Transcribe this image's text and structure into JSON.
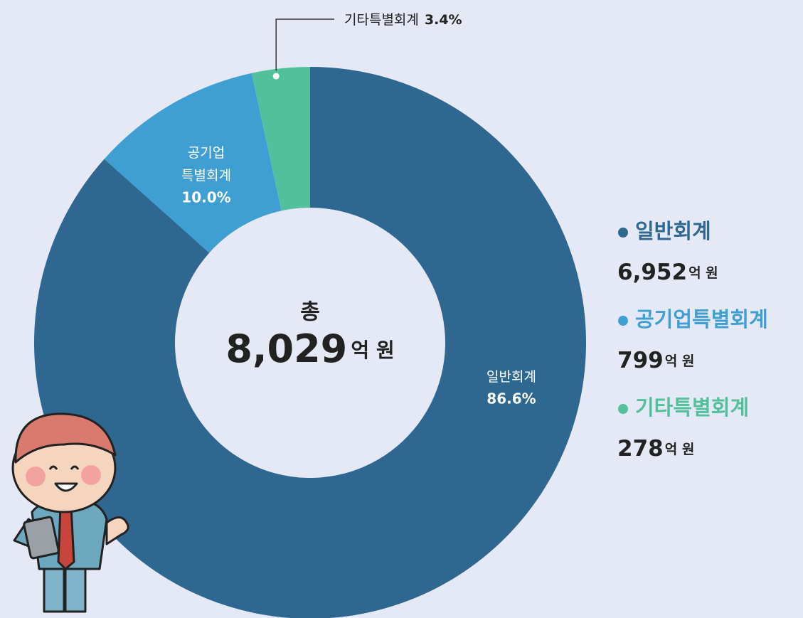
{
  "chart_data": {
    "type": "donut",
    "categories": [
      "일반회계",
      "공기업특별회계",
      "기타특별회계"
    ],
    "slice_labels": [
      "일반회계",
      "공기업\n특별회계",
      "기타특별회계"
    ],
    "values": [
      86.6,
      10.0,
      3.4
    ],
    "value_labels": [
      "86.6%",
      "10.0%",
      "3.4%"
    ],
    "colors": [
      "#2e6891",
      "#3f9fd3",
      "#52c19b"
    ],
    "amounts": [
      6952,
      799,
      278
    ],
    "amount_labels": [
      "6,952",
      "799",
      "278"
    ],
    "amount_unit": "억 원",
    "total_label": "총",
    "total": 8029,
    "total_value_label": "8,029"
  }
}
